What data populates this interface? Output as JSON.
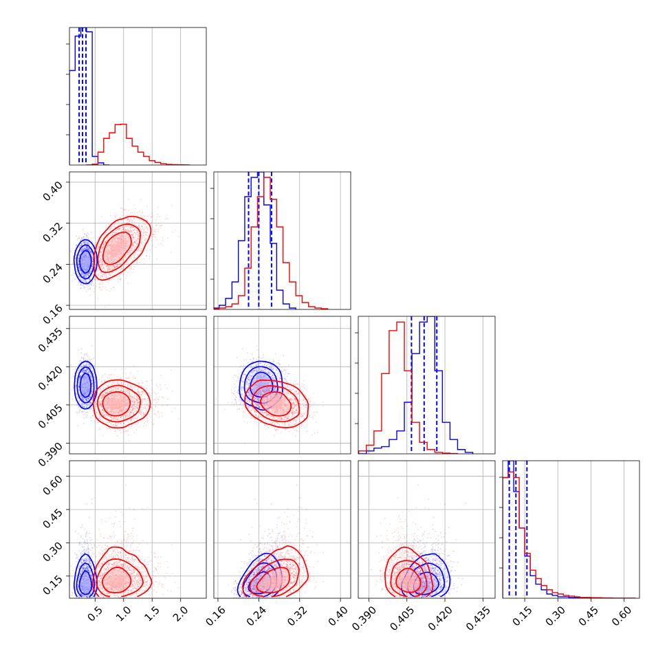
{
  "chart_data": {
    "type": "corner",
    "grid": true,
    "parameters": [
      {
        "range": [
          0.05,
          2.45
        ],
        "ticks": [
          0.5,
          1.0,
          1.5,
          2.0
        ],
        "tick_labels": [
          "0.5",
          "1.0",
          "1.5",
          "2.0"
        ]
      },
      {
        "range": [
          0.152,
          0.42
        ],
        "ticks": [
          0.16,
          0.24,
          0.32,
          0.4
        ],
        "tick_labels": [
          "0.16",
          "0.24",
          "0.32",
          "0.40"
        ]
      },
      {
        "range": [
          0.3858,
          0.4398
        ],
        "ticks": [
          0.39,
          0.405,
          0.42,
          0.435
        ],
        "tick_labels": [
          "0.390",
          "0.405",
          "0.420",
          "0.435"
        ]
      },
      {
        "range": [
          0.05,
          0.67
        ],
        "ticks": [
          0.15,
          0.3,
          0.45,
          0.6
        ],
        "tick_labels": [
          "0.15",
          "0.30",
          "0.45",
          "0.60"
        ]
      }
    ],
    "series": [
      {
        "color": "#0000ff",
        "means": [
          0.33,
          0.245,
          0.4128,
          0.125
        ],
        "sds": [
          0.07,
          0.02,
          0.0045,
          0.04
        ],
        "correlation": [
          [
            1,
            0,
            0,
            0
          ],
          [
            0,
            1,
            0,
            0.35
          ],
          [
            0,
            0,
            1,
            0.15
          ],
          [
            0,
            0.35,
            0.15,
            1
          ]
        ],
        "quantiles": [
          [
            0.22,
            0.28,
            0.34
          ],
          [
            0.22,
            0.24,
            0.265
          ],
          [
            0.4068,
            0.4118,
            0.4168
          ],
          [
            0.08,
            0.11,
            0.16
          ]
        ],
        "histograms": [
          {
            "edges": [
              0.05,
              0.15,
              0.25,
              0.35,
              0.45,
              0.55,
              0.65,
              0.75
            ],
            "counts": [
              2.2,
              3.0,
              3.2,
              3.1,
              0.2,
              0.05,
              0
            ]
          },
          {
            "edges": [
              0.15,
              0.1625,
              0.175,
              0.1875,
              0.2,
              0.2125,
              0.225,
              0.2375,
              0.25,
              0.2625,
              0.275,
              0.2875,
              0.3,
              0.3125
            ],
            "counts": [
              0.01,
              0.03,
              0.08,
              0.2,
              0.5,
              0.82,
              0.96,
              1.0,
              0.76,
              0.48,
              0.14,
              0.04,
              0.01
            ]
          },
          {
            "edges": [
              0.386,
              0.389,
              0.392,
              0.395,
              0.398,
              0.401,
              0.404,
              0.407,
              0.41,
              0.413,
              0.416,
              0.419,
              0.422,
              0.425,
              0.428,
              0.431
            ],
            "counts": [
              0,
              0.02,
              0.04,
              0.05,
              0.1,
              0.16,
              0.36,
              0.7,
              0.92,
              0.96,
              0.58,
              0.22,
              0.1,
              0.03,
              0.01
            ]
          },
          {
            "edges": [
              0.05,
              0.075,
              0.1,
              0.125,
              0.15,
              0.175,
              0.2,
              0.225,
              0.25,
              0.275,
              0.3,
              0.325,
              0.35,
              0.4,
              0.45,
              0.5
            ],
            "counts": [
              0.86,
              0.98,
              0.76,
              0.5,
              0.3,
              0.16,
              0.1,
              0.06,
              0.03,
              0.02,
              0.01,
              0.01,
              0.005,
              0.003,
              0.002
            ]
          }
        ]
      },
      {
        "color": "#ff0000",
        "means": [
          0.95,
          0.275,
          0.4055,
          0.14
        ],
        "sds": [
          0.25,
          0.03,
          0.0045,
          0.05
        ],
        "correlation": [
          [
            1,
            0.55,
            0,
            0
          ],
          [
            0.55,
            1,
            -0.25,
            0.4
          ],
          [
            0,
            -0.25,
            1,
            -0.15
          ],
          [
            0,
            0.4,
            -0.15,
            1
          ]
        ],
        "histograms": [
          {
            "edges": [
              0.35,
              0.45,
              0.55,
              0.65,
              0.75,
              0.85,
              0.95,
              1.05,
              1.15,
              1.25,
              1.35,
              1.45,
              1.55,
              1.65,
              1.75,
              1.85,
              1.95,
              2.05,
              2.15
            ],
            "counts": [
              0.003,
              0.02,
              0.3,
              0.62,
              0.75,
              0.94,
              0.95,
              0.62,
              0.44,
              0.3,
              0.2,
              0.1,
              0.06,
              0.03,
              0.015,
              0.008,
              0.004,
              0.002
            ]
          },
          {
            "edges": [
              0.15,
              0.1625,
              0.175,
              0.1875,
              0.2,
              0.2125,
              0.225,
              0.2375,
              0.25,
              0.2625,
              0.275,
              0.2875,
              0.3,
              0.3125,
              0.325,
              0.3375,
              0.35,
              0.3625,
              0.375
            ],
            "counts": [
              0.005,
              0.01,
              0.02,
              0.04,
              0.1,
              0.3,
              0.6,
              0.82,
              0.96,
              0.8,
              0.6,
              0.34,
              0.2,
              0.1,
              0.05,
              0.02,
              0.01,
              0.005
            ]
          },
          {
            "edges": [
              0.386,
              0.389,
              0.392,
              0.395,
              0.398,
              0.401,
              0.404,
              0.407,
              0.41,
              0.413,
              0.416,
              0.419,
              0.422,
              0.425
            ],
            "counts": [
              0.02,
              0.06,
              0.16,
              0.56,
              0.86,
              0.92,
              0.58,
              0.22,
              0.08,
              0.03,
              0.01,
              0.005,
              0.002
            ]
          },
          {
            "edges": [
              0.05,
              0.075,
              0.1,
              0.125,
              0.15,
              0.175,
              0.2,
              0.225,
              0.25,
              0.275,
              0.3,
              0.325,
              0.35,
              0.375,
              0.4,
              0.45,
              0.5,
              0.55,
              0.6,
              0.65
            ],
            "counts": [
              0.86,
              0.9,
              0.86,
              0.5,
              0.32,
              0.2,
              0.14,
              0.09,
              0.06,
              0.04,
              0.03,
              0.02,
              0.015,
              0.01,
              0.006,
              0.004,
              0.002,
              0.001,
              0.001
            ]
          }
        ]
      }
    ]
  }
}
